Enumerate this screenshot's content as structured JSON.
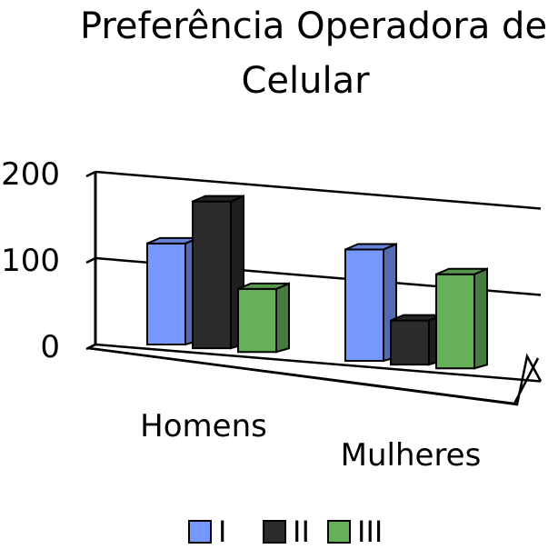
{
  "chart_data": {
    "type": "bar",
    "title_lines": [
      "Preferência Operadora de",
      "Celular"
    ],
    "categories": [
      "Homens",
      "Mulheres"
    ],
    "series": [
      {
        "name": "I",
        "values": [
          117,
          129
        ],
        "color": "#7799ff"
      },
      {
        "name": "II",
        "values": [
          170,
          51
        ],
        "color": "#2b2b2b"
      },
      {
        "name": "III",
        "values": [
          73,
          109
        ],
        "color": "#66b05a"
      }
    ],
    "y_ticks": [
      "0",
      "100",
      "200"
    ],
    "ylim": [
      0,
      200
    ],
    "grid": true,
    "legend_position": "bottom",
    "projection": "3d"
  }
}
